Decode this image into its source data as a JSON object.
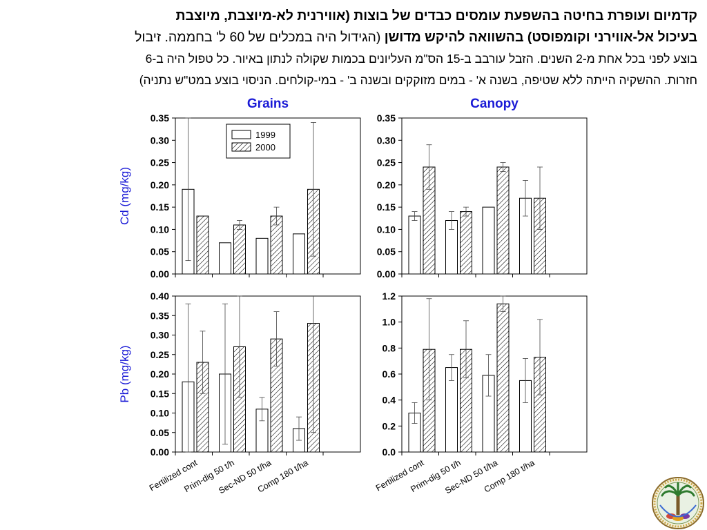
{
  "caption": {
    "line1": "קדמיום ועופרת בחיטה בהשפעת עומסים כבדים של בוצות (אווירנית לא-מיוצבת, מיוצבת",
    "line2_bold": "בעיכול אל-אווירני וקומפוסט) בהשוואה להיקש מדושן",
    "line2_normal": " (הגידול היה במכלים של 60 ל' בחממה. זיבול",
    "line3": "בוצע לפני בכל אחת מ-2 השנים. הזבל עורבב ב-15 הס\"מ העליונים בכמות שקולה לנתון באיור. כל טפול היה ב-6",
    "line4": "חזרות. ההשקיה הייתה ללא שטיפה, בשנה א' - במים מזוקקים ובשנה ב' - במי-קולחים. הניסוי בוצע במט\"ש נתניה)"
  },
  "colors": {
    "title": "#1a1ad6",
    "ylabel": "#1a1ad6",
    "axis": "#000000",
    "bar_fill": "#ffffff"
  },
  "legend": {
    "placement": "top-left",
    "entries": [
      "1999",
      "2000"
    ]
  },
  "categories": [
    "Fertilized cont",
    "Prim-dig 50 t/h",
    "Sec-ND 50 t/ha",
    "Comp 180 t/ha"
  ],
  "chart_data": [
    {
      "type": "bar",
      "title": "Grains",
      "ylabel": "Cd (mg/kg)",
      "xlabel": "",
      "ylim": [
        0,
        0.35
      ],
      "yticks": [
        "0.00",
        "0.05",
        "0.10",
        "0.15",
        "0.20",
        "0.25",
        "0.30",
        "0.35"
      ],
      "categories": [
        "Fertilized cont",
        "Prim-dig 50 t/h",
        "Sec-ND 50 t/ha",
        "Comp 180 t/ha"
      ],
      "show_legend": true,
      "show_xticklabels": false,
      "series": [
        {
          "name": "1999",
          "pattern": "plain",
          "values": [
            0.19,
            0.07,
            0.08,
            0.09
          ],
          "errors": [
            0.16,
            null,
            null,
            null
          ]
        },
        {
          "name": "2000",
          "pattern": "hatch",
          "values": [
            0.13,
            0.11,
            0.13,
            0.19
          ],
          "errors": [
            null,
            0.01,
            0.02,
            0.15
          ]
        }
      ]
    },
    {
      "type": "bar",
      "title": "Canopy",
      "ylabel": "",
      "xlabel": "",
      "ylim": [
        0,
        0.35
      ],
      "yticks": [
        "0.00",
        "0.05",
        "0.10",
        "0.15",
        "0.20",
        "0.25",
        "0.30",
        "0.35"
      ],
      "categories": [
        "Fertilized cont",
        "Prim-dig 50 t/h",
        "Sec-ND 50 t/ha",
        "Comp 180 t/ha"
      ],
      "show_legend": false,
      "show_xticklabels": false,
      "series": [
        {
          "name": "1999",
          "pattern": "plain",
          "values": [
            0.13,
            0.12,
            0.15,
            0.17
          ],
          "errors": [
            0.01,
            0.02,
            null,
            0.04
          ]
        },
        {
          "name": "2000",
          "pattern": "hatch",
          "values": [
            0.24,
            0.14,
            0.24,
            0.17
          ],
          "errors": [
            0.05,
            0.01,
            0.01,
            0.07
          ]
        }
      ]
    },
    {
      "type": "bar",
      "title": "",
      "ylabel": "Pb (mg/kg)",
      "xlabel": "",
      "ylim": [
        0,
        0.4
      ],
      "yticks": [
        "0.00",
        "0.05",
        "0.10",
        "0.15",
        "0.20",
        "0.25",
        "0.30",
        "0.35",
        "0.40"
      ],
      "categories": [
        "Fertilized cont",
        "Prim-dig 50 t/h",
        "Sec-ND 50 t/ha",
        "Comp 180 t/ha"
      ],
      "show_legend": false,
      "show_xticklabels": true,
      "series": [
        {
          "name": "1999",
          "pattern": "plain",
          "values": [
            0.18,
            0.2,
            0.11,
            0.06
          ],
          "errors": [
            0.2,
            0.18,
            0.03,
            0.03
          ]
        },
        {
          "name": "2000",
          "pattern": "hatch",
          "values": [
            0.23,
            0.27,
            0.29,
            0.33
          ],
          "errors": [
            0.08,
            0.13,
            0.07,
            0.28
          ]
        }
      ]
    },
    {
      "type": "bar",
      "title": "",
      "ylabel": "",
      "xlabel": "",
      "ylim": [
        0,
        1.2
      ],
      "yticks": [
        "0.0",
        "0.2",
        "0.4",
        "0.6",
        "0.8",
        "1.0",
        "1.2"
      ],
      "categories": [
        "Fertilized cont",
        "Prim-dig 50 t/h",
        "Sec-ND 50 t/ha",
        "Comp 180 t/ha"
      ],
      "show_legend": false,
      "show_xticklabels": true,
      "series": [
        {
          "name": "1999",
          "pattern": "plain",
          "values": [
            0.3,
            0.65,
            0.59,
            0.55
          ],
          "errors": [
            0.08,
            0.1,
            0.16,
            0.17
          ]
        },
        {
          "name": "2000",
          "pattern": "hatch",
          "values": [
            0.79,
            0.79,
            1.14,
            0.73
          ],
          "errors": [
            0.39,
            0.22,
            0.06,
            0.29
          ]
        }
      ]
    }
  ],
  "logo": {
    "name": "institute-emblem"
  }
}
